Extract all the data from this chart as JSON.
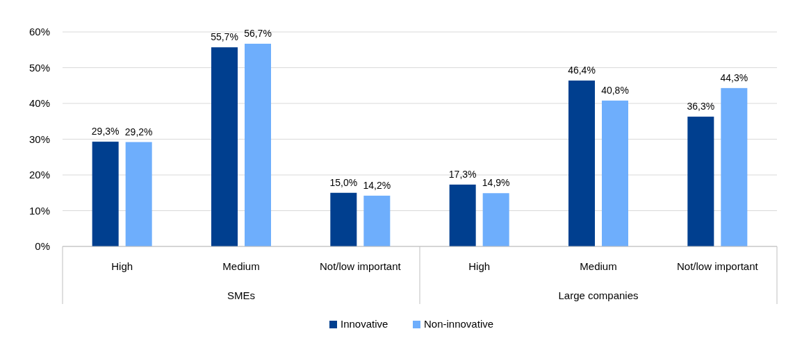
{
  "chart_data": {
    "type": "bar",
    "categories": [
      "High",
      "Medium",
      "Not/low important",
      "High",
      "Medium",
      "Not/low important"
    ],
    "annotations": [
      "SMEs",
      "Large companies"
    ],
    "series": [
      {
        "name": "Innovative",
        "color": "#003f8f",
        "values": [
          29.3,
          55.7,
          15.0,
          17.3,
          46.4,
          36.3
        ],
        "value_labels": [
          "29,3%",
          "55,7%",
          "15,0%",
          "17,3%",
          "46,4%",
          "36,3%"
        ]
      },
      {
        "name": "Non-innovative",
        "color": "#6eaefc",
        "values": [
          29.2,
          56.7,
          14.2,
          14.9,
          40.8,
          44.3
        ],
        "value_labels": [
          "29,2%",
          "56,7%",
          "14,2%",
          "14,9%",
          "40,8%",
          "44,3%"
        ]
      }
    ],
    "ylim": [
      0,
      60
    ],
    "yticks": [
      {
        "value": 0,
        "label": "0%"
      },
      {
        "value": 10,
        "label": "10%"
      },
      {
        "value": 20,
        "label": "20%"
      },
      {
        "value": 30,
        "label": "30%"
      },
      {
        "value": 40,
        "label": "40%"
      },
      {
        "value": 50,
        "label": "50%"
      },
      {
        "value": 60,
        "label": "60%"
      }
    ],
    "grid": "y",
    "legend": "bottom"
  }
}
